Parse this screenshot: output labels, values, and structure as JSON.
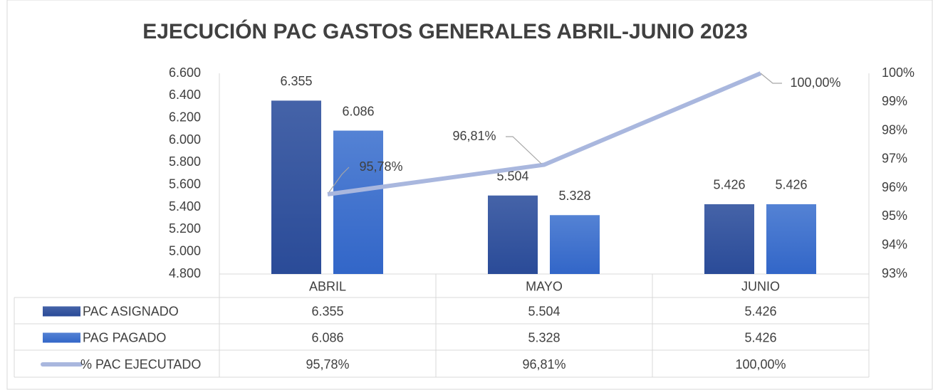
{
  "chart_data": {
    "type": "bar",
    "title": "EJECUCIÓN PAC GASTOS GENERALES ABRIL-JUNIO 2023",
    "categories": [
      "ABRIL",
      "MAYO",
      "JUNIO"
    ],
    "series": [
      {
        "name": "PAC ASIGNADO",
        "color": "#2f519c",
        "values": [
          6355,
          5504,
          5426
        ],
        "value_labels": [
          "6.355",
          "5.504",
          "5.426"
        ]
      },
      {
        "name": "PAG PAGADO",
        "color": "#3f6fcc",
        "values": [
          6086,
          5328,
          5426
        ],
        "value_labels": [
          "6.086",
          "5.328",
          "5.426"
        ]
      },
      {
        "name": "% PAC EJECUTADO",
        "type": "line",
        "axis": "y2",
        "color": "#a9b7de",
        "values": [
          95.78,
          96.81,
          100
        ],
        "value_labels": [
          "95,78%",
          "96,81%",
          "100,00%"
        ]
      }
    ],
    "ylim": [
      4800,
      6600
    ],
    "yticks": [
      {
        "value": 4800,
        "label": "4.800"
      },
      {
        "value": 5000,
        "label": "5.000"
      },
      {
        "value": 5200,
        "label": "5.200"
      },
      {
        "value": 5400,
        "label": "5.400"
      },
      {
        "value": 5600,
        "label": "5.600"
      },
      {
        "value": 5800,
        "label": "5.800"
      },
      {
        "value": 6000,
        "label": "6.000"
      },
      {
        "value": 6200,
        "label": "6.200"
      },
      {
        "value": 6400,
        "label": "6.400"
      },
      {
        "value": 6600,
        "label": "6.600"
      }
    ],
    "y2lim": [
      93,
      100
    ],
    "y2ticks": [
      {
        "value": 93,
        "label": "93%"
      },
      {
        "value": 94,
        "label": "94%"
      },
      {
        "value": 95,
        "label": "95%"
      },
      {
        "value": 96,
        "label": "96%"
      },
      {
        "value": 97,
        "label": "97%"
      },
      {
        "value": 98,
        "label": "98%"
      },
      {
        "value": 99,
        "label": "99%"
      },
      {
        "value": 100,
        "label": "100%"
      }
    ],
    "grid": false,
    "data_table": true
  }
}
